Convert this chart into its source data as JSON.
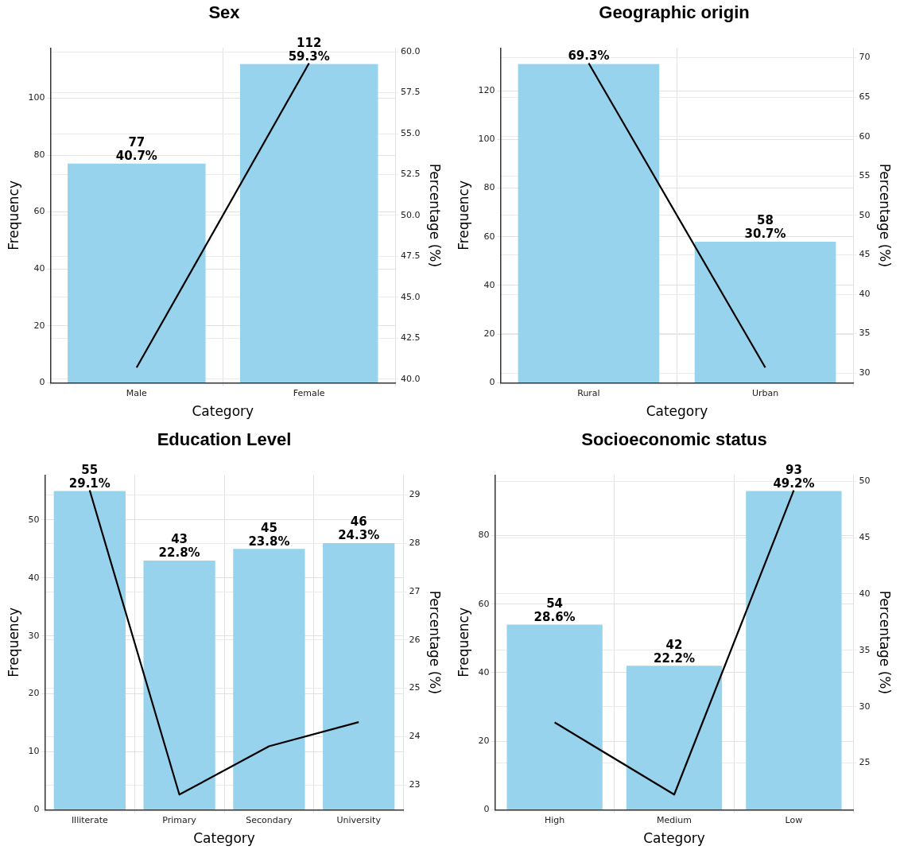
{
  "chart_data": [
    {
      "type": "bar",
      "title": "Sex",
      "xlabel": "Category",
      "ylabel": "Frequency",
      "y2label": "Percentage (%)",
      "categories": [
        "Male",
        "Female"
      ],
      "series": [
        {
          "color": "#97d3ed",
          "values": [
            77,
            112
          ],
          "value_labels": [
            "77\n40.7%",
            "112\n59.3%"
          ]
        },
        {
          "type": "line",
          "axis": "y2",
          "color": "#000000",
          "values": [
            40.7,
            59.3
          ]
        }
      ],
      "ylim": [
        0,
        117.6
      ],
      "yticks": [
        0,
        20,
        40,
        60,
        80,
        100
      ],
      "y2lim": [
        39.77,
        60.23
      ],
      "y2ticks": [
        {
          "value": 40,
          "label": "40.0"
        },
        {
          "value": 42.5,
          "label": "42.5"
        },
        {
          "value": 45,
          "label": "45.0"
        },
        {
          "value": 47.5,
          "label": "47.5"
        },
        {
          "value": 50,
          "label": "50.0"
        },
        {
          "value": 52.5,
          "label": "52.5"
        },
        {
          "value": 55,
          "label": "55.0"
        },
        {
          "value": 57.5,
          "label": "57.5"
        },
        {
          "value": 60,
          "label": "60.0"
        }
      ],
      "grid": true,
      "marker": "none"
    },
    {
      "type": "bar",
      "title": "Geographic origin",
      "xlabel": "Category",
      "ylabel": "Frequency",
      "y2label": "Percentage (%)",
      "categories": [
        "Rural",
        "Urban"
      ],
      "series": [
        {
          "color": "#97d3ed",
          "values": [
            131,
            58
          ],
          "value_labels": [
            null,
            "58\n30.7%"
          ]
        },
        {
          "type": "line",
          "axis": "y2",
          "color": "#000000",
          "values": [
            69.3,
            30.7
          ],
          "value_labels": [
            "69.3%",
            null
          ]
        }
      ],
      "ylim": [
        0,
        137.55
      ],
      "yticks": [
        0,
        20,
        40,
        60,
        80,
        100,
        120
      ],
      "y2lim": [
        28.77,
        71.23
      ],
      "y2ticks": [
        30,
        35,
        40,
        45,
        50,
        55,
        60,
        65,
        70
      ],
      "grid": true,
      "marker": "none"
    },
    {
      "type": "bar",
      "title": "Education Level",
      "xlabel": "Category",
      "ylabel": "Frequency",
      "y2label": "Percentage (%)",
      "categories": [
        "Illiterate",
        "Primary",
        "Secondary",
        "University"
      ],
      "series": [
        {
          "color": "#97d3ed",
          "values": [
            55,
            43,
            45,
            46
          ],
          "value_labels": [
            "55\n29.1%",
            "43\n22.8%",
            "45\n23.8%",
            "46\n24.3%"
          ]
        },
        {
          "type": "line",
          "axis": "y2",
          "color": "#000000",
          "values": [
            29.1,
            22.8,
            23.8,
            24.3
          ]
        }
      ],
      "ylim": [
        0,
        57.75
      ],
      "yticks": [
        0,
        10,
        20,
        30,
        40,
        50
      ],
      "y2lim": [
        22.485,
        29.415
      ],
      "y2ticks": [
        23,
        24,
        25,
        26,
        27,
        28,
        29
      ],
      "grid": true,
      "marker": "none"
    },
    {
      "type": "bar",
      "title": "Socioeconomic status",
      "xlabel": "Category",
      "ylabel": "Frequency",
      "y2label": "Percentage (%)",
      "categories": [
        "High",
        "Medium",
        "Low"
      ],
      "series": [
        {
          "color": "#97d3ed",
          "values": [
            54,
            42,
            93
          ],
          "value_labels": [
            "54\n28.6%",
            "42\n22.2%",
            "93\n49.2%"
          ]
        },
        {
          "type": "line",
          "axis": "y2",
          "color": "#000000",
          "values": [
            28.6,
            22.2,
            49.2
          ]
        }
      ],
      "ylim": [
        0,
        97.65
      ],
      "yticks": [
        0,
        20,
        40,
        60,
        80
      ],
      "y2lim": [
        20.85,
        50.55
      ],
      "y2ticks": [
        25,
        30,
        35,
        40,
        45,
        50
      ],
      "grid": true,
      "marker": "none"
    }
  ]
}
